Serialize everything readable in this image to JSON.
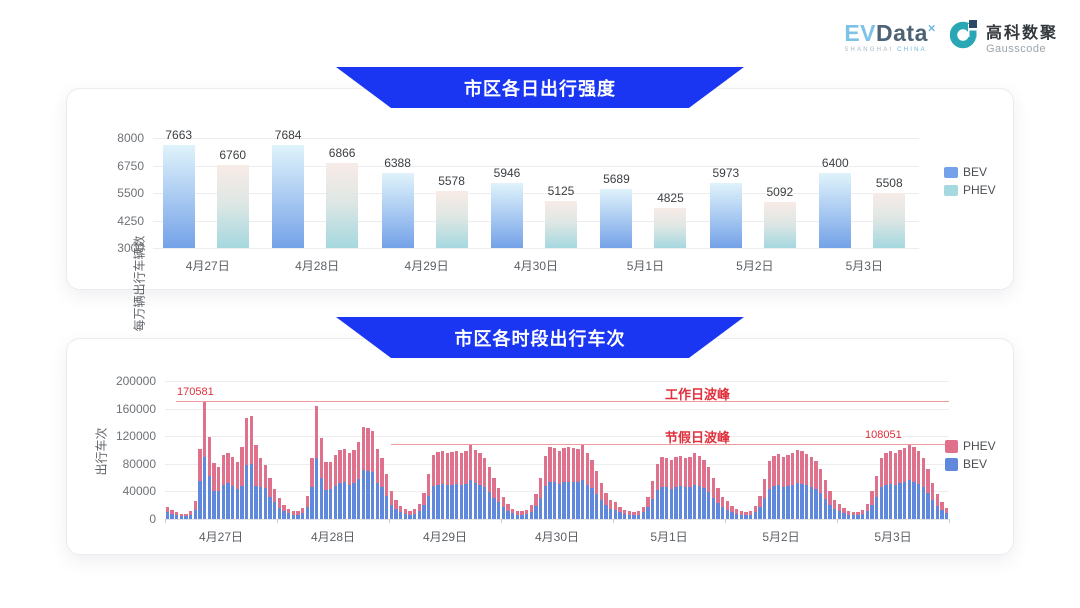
{
  "header": {
    "evdata": {
      "ev": "EV",
      "data_word": "Data",
      "sup": "×",
      "sub_left": "SHANGHAI ",
      "sub_right": "CHINA"
    },
    "gausscode": {
      "cn": "高科数聚",
      "en": "Gausscode"
    }
  },
  "colors": {
    "banner_blue": "#1b36f2",
    "bev_top": "#e0f3fb",
    "bev_bottom": "#74a2e8",
    "phev_top": "#f8ebe7",
    "phev_bottom": "#a5d8df",
    "bev_solid": "#6089dd",
    "phev_solid": "#e0718c",
    "ann_red": "#e0303c",
    "ann_line": "#ef9a9c",
    "legend1_bev": "#74a2e8",
    "legend1_phev": "#a5d8df"
  },
  "chart_data": [
    {
      "type": "bar",
      "title": "市区各日出行强度",
      "ylabel": "每万辆出行车辆数",
      "categories": [
        "4月27日",
        "4月28日",
        "4月29日",
        "4月30日",
        "5月1日",
        "5月2日",
        "5月3日"
      ],
      "series": [
        {
          "name": "BEV",
          "values": [
            7663,
            7684,
            6388,
            5946,
            5689,
            5973,
            6400
          ]
        },
        {
          "name": "PHEV",
          "values": [
            6760,
            6866,
            5578,
            5125,
            4825,
            5092,
            5508
          ]
        }
      ],
      "ylim": [
        3000,
        8000
      ],
      "yticks": [
        3000,
        4250,
        5500,
        6750,
        8000
      ],
      "legend": [
        "BEV",
        "PHEV"
      ],
      "legend_position": "right",
      "grid": true
    },
    {
      "type": "stacked-bar",
      "title": "市区各时段出行车次",
      "ylabel": "出行车次",
      "categories": [
        "4月27日",
        "4月28日",
        "4月29日",
        "4月30日",
        "5月1日",
        "5月2日",
        "5月3日"
      ],
      "hours_per_day": 24,
      "ylim": [
        0,
        200000
      ],
      "yticks": [
        0,
        40000,
        80000,
        120000,
        160000,
        200000
      ],
      "legend": [
        "PHEV",
        "BEV"
      ],
      "legend_position": "right",
      "grid": true,
      "series": [
        {
          "name": "BEV",
          "values_by_day": [
            [
              10000,
              7000,
              5500,
              4500,
              4500,
              6000,
              13000,
              55000,
              90581,
              62000,
              40000,
              40000,
              50000,
              52000,
              48000,
              44000,
              48000,
              79000,
              80000,
              48000,
              46000,
              45000,
              32000,
              24000
            ],
            [
              16000,
              11000,
              8000,
              6500,
              6500,
              8500,
              18000,
              47000,
              88000,
              60000,
              42000,
              43000,
              48000,
              52000,
              53000,
              50000,
              52000,
              58000,
              71000,
              70000,
              68000,
              52000,
              46000,
              34000
            ],
            [
              21000,
              15000,
              10000,
              7500,
              6500,
              7500,
              12000,
              20000,
              34000,
              48000,
              50000,
              51000,
              50000,
              50000,
              51000,
              50000,
              51000,
              56000,
              52000,
              49000,
              46000,
              39000,
              31000,
              24000
            ],
            [
              17000,
              11500,
              8000,
              6500,
              6000,
              7000,
              10500,
              19000,
              31000,
              48000,
              54000,
              53000,
              51000,
              53000,
              54000,
              53000,
              53000,
              56000,
              50000,
              45000,
              36000,
              27000,
              20000,
              14500
            ],
            [
              12500,
              9500,
              7000,
              6000,
              5500,
              6500,
              9500,
              17000,
              29000,
              42000,
              47000,
              46000,
              44000,
              47000,
              48000,
              46000,
              47000,
              49000,
              48000,
              45000,
              39000,
              31000,
              23000,
              17000
            ],
            [
              13500,
              10000,
              7500,
              6000,
              5500,
              6500,
              10000,
              18000,
              30000,
              44000,
              48000,
              49000,
              47000,
              48000,
              50000,
              52000,
              51000,
              49000,
              47000,
              44000,
              37000,
              29000,
              21000,
              14500
            ],
            [
              11500,
              8500,
              6500,
              5500,
              5500,
              7000,
              11500,
              21000,
              32000,
              46000,
              49000,
              51000,
              50000,
              52000,
              54000,
              56051,
              54000,
              51000,
              46000,
              37000,
              27000,
              19000,
              12500,
              8500
            ]
          ]
        },
        {
          "name": "PHEV",
          "values_by_day": [
            [
              8000,
              6000,
              4500,
              3500,
              3500,
              5000,
              13000,
              46000,
              80000,
              57000,
              41000,
              36000,
              43000,
              43000,
              42000,
              38000,
              56000,
              67000,
              70000,
              60000,
              42000,
              34000,
              27000,
              20000
            ],
            [
              14000,
              10000,
              7000,
              5500,
              5500,
              7500,
              16000,
              41000,
              76500,
              57000,
              40000,
              40000,
              45000,
              48000,
              48000,
              46000,
              48000,
              53000,
              62000,
              62000,
              60000,
              49000,
              42000,
              31000
            ],
            [
              19000,
              13000,
              9000,
              6500,
              5500,
              6500,
              10000,
              18000,
              31000,
              45000,
              47000,
              48000,
              46000,
              47000,
              47000,
              46000,
              48000,
              52000,
              48000,
              46000,
              42000,
              36000,
              29000,
              21000
            ],
            [
              15000,
              10500,
              7000,
              5500,
              5000,
              6000,
              9500,
              17000,
              29000,
              44000,
              51000,
              50000,
              48000,
              50000,
              50000,
              50000,
              49000,
              52000,
              46000,
              41000,
              34000,
              25000,
              18000,
              13500
            ],
            [
              11500,
              8500,
              6000,
              5000,
              4500,
              5500,
              8500,
              15000,
              26000,
              38000,
              43000,
              42000,
              41000,
              43000,
              44000,
              42000,
              43000,
              46000,
              44000,
              41000,
              37000,
              29000,
              22000,
              15000
            ],
            [
              12500,
              9000,
              6500,
              5000,
              4500,
              5500,
              9000,
              16000,
              28000,
              40000,
              44000,
              45000,
              43000,
              45000,
              46000,
              48000,
              47000,
              45000,
              43000,
              40000,
              35000,
              27000,
              19000,
              13500
            ],
            [
              10500,
              7500,
              5500,
              4500,
              4500,
              6000,
              10500,
              19000,
              30000,
              42000,
              46000,
              47000,
              46000,
              48000,
              49000,
              52000,
              50000,
              47000,
              42000,
              35000,
              25000,
              17000,
              11500,
              7500
            ]
          ]
        }
      ],
      "annotations": {
        "workday_peak": {
          "label": "工作日波峰",
          "value": 170581,
          "value_label": "170581"
        },
        "holiday_peak": {
          "label": "节假日波峰",
          "value": 108051,
          "value_label": "108051"
        }
      }
    }
  ]
}
